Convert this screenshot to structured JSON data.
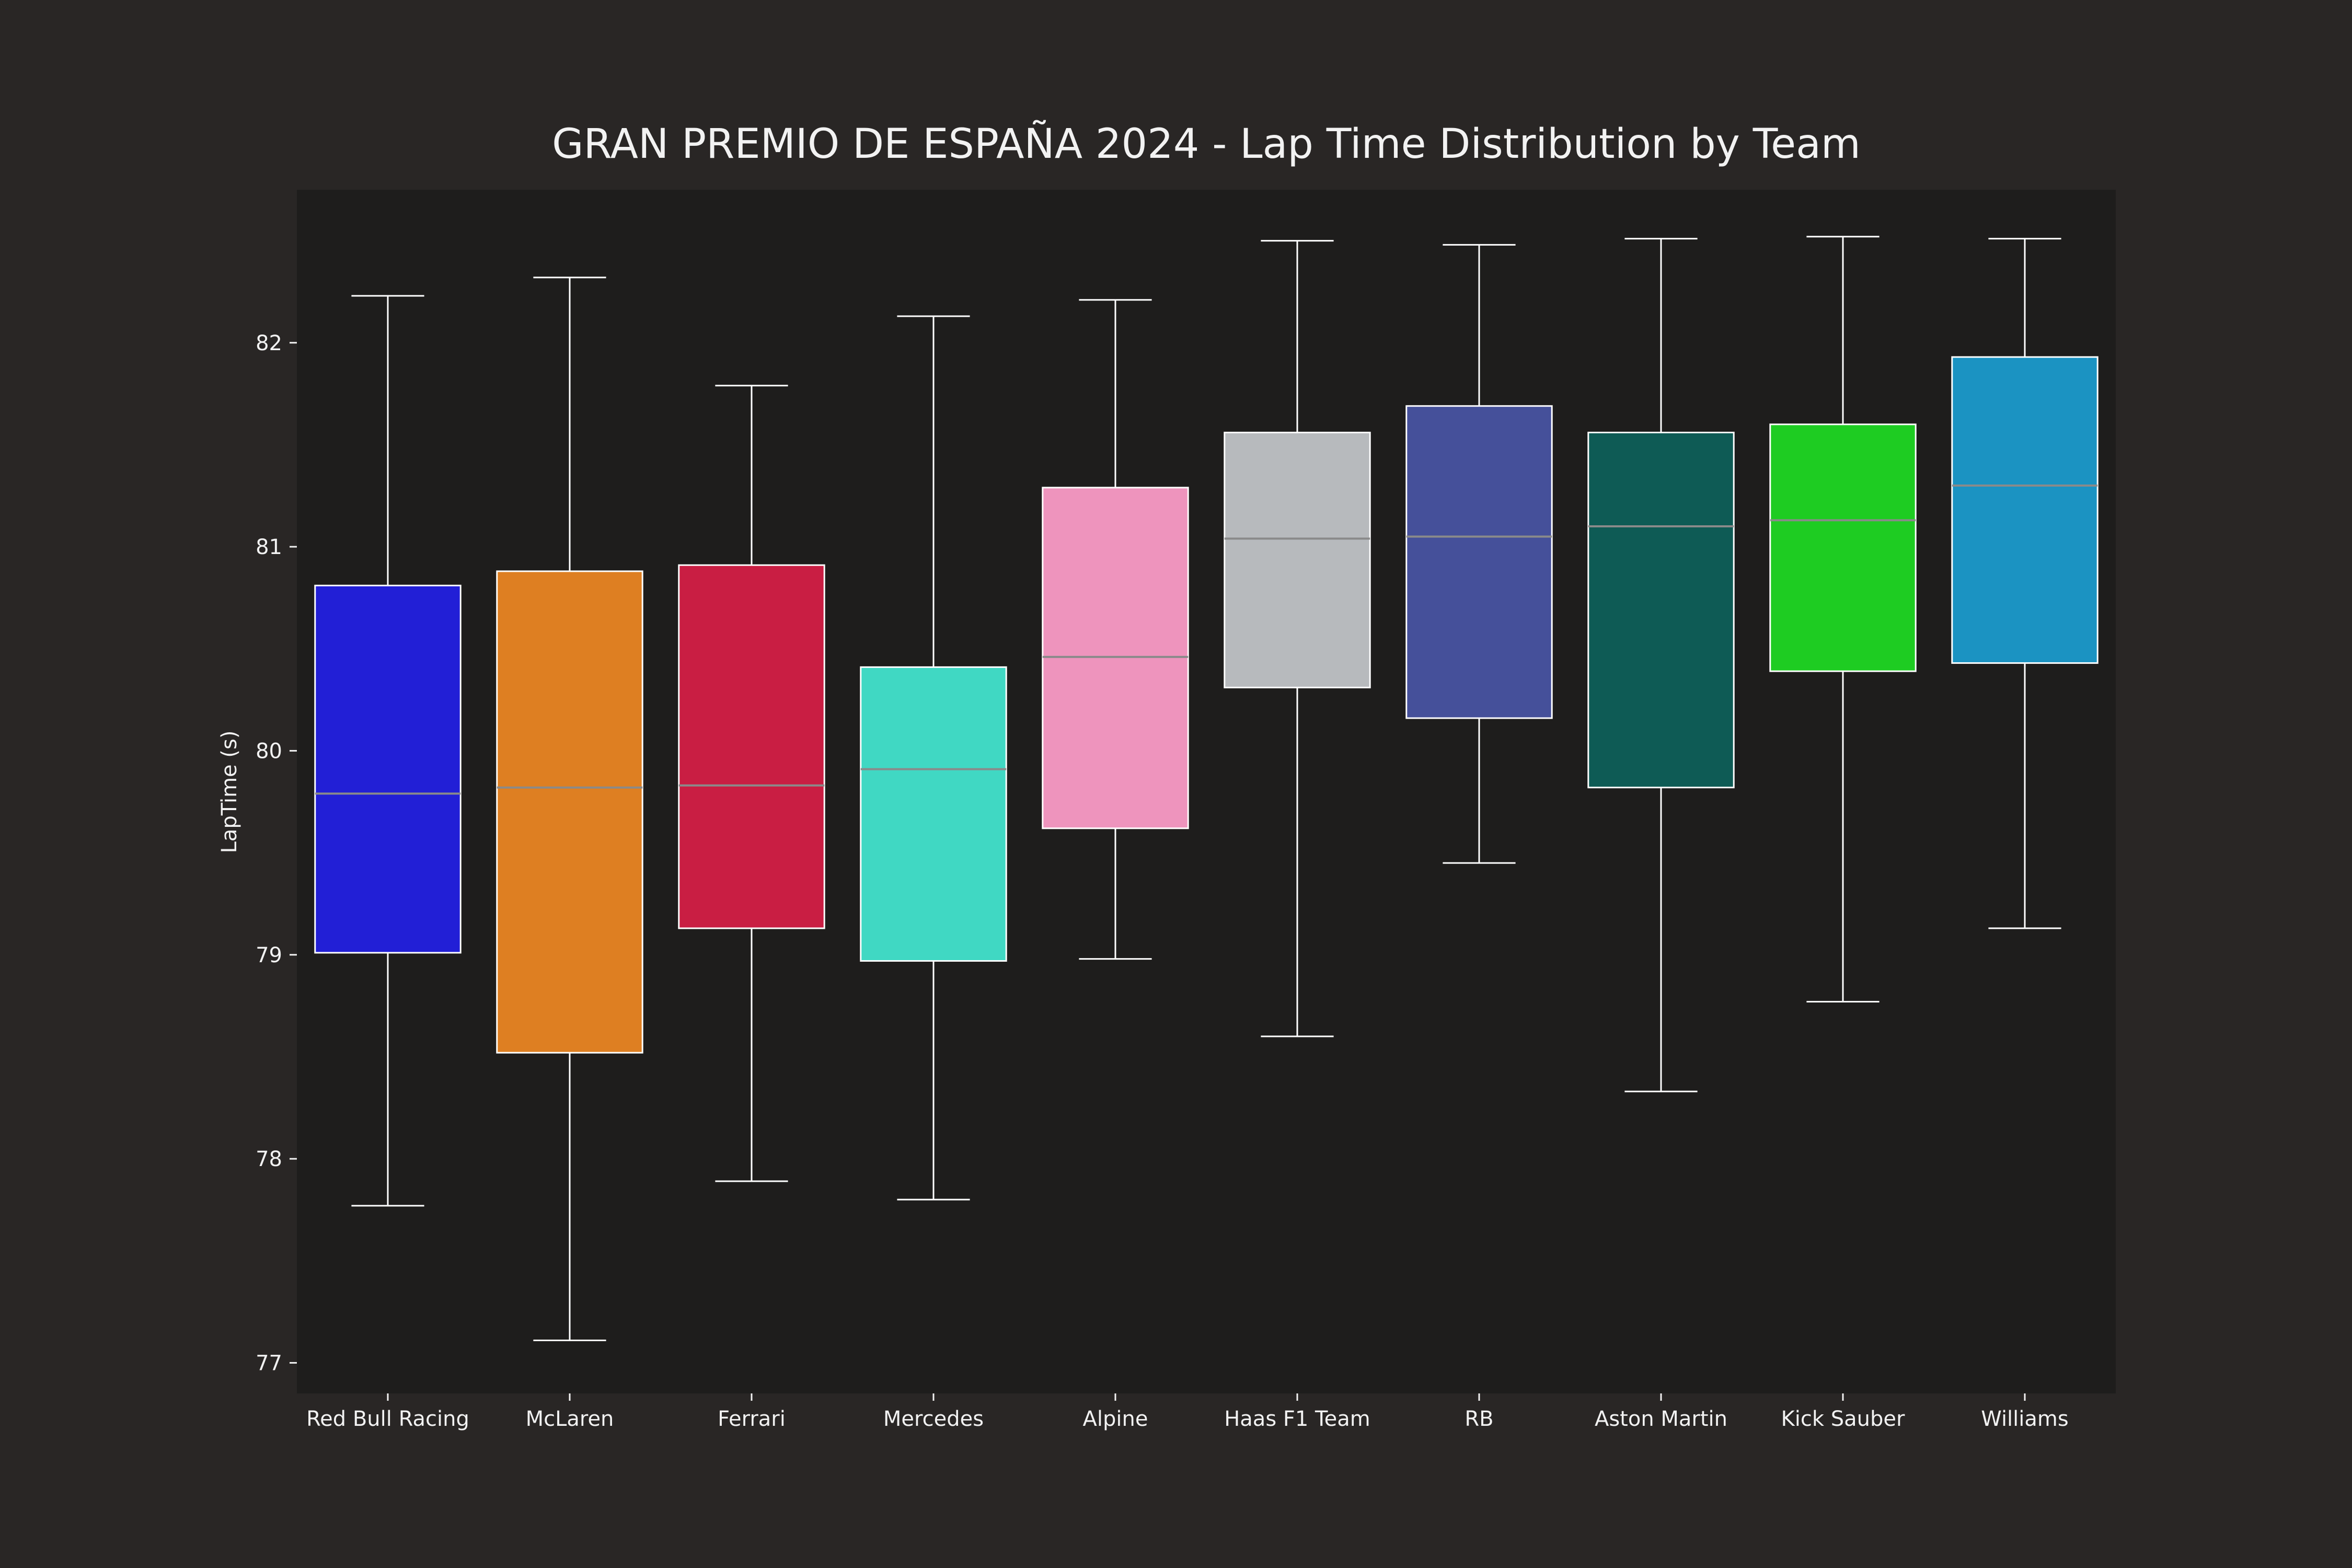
{
  "colors": {
    "figure_bg": "#292625",
    "plot_bg": "#1e1d1c",
    "text": "#f2f2f2",
    "whisker": "#ffffff",
    "median": "#8a8a8a"
  },
  "chart_data": {
    "type": "box",
    "title": "GRAN PREMIO DE ESPAÑA 2024 - Lap Time Distribution by Team",
    "xlabel": "",
    "ylabel": "LapTime (s)",
    "ylim": [
      76.85,
      82.75
    ],
    "yticks": [
      77,
      78,
      79,
      80,
      81,
      82
    ],
    "grid": false,
    "categories": [
      "Red Bull Racing",
      "McLaren",
      "Ferrari",
      "Mercedes",
      "Alpine",
      "Haas F1 Team",
      "RB",
      "Aston Martin",
      "Kick Sauber",
      "Williams"
    ],
    "boxes": [
      {
        "team": "Red Bull Racing",
        "color": "#221fd6",
        "whisker_low": 77.77,
        "q1": 79.01,
        "median": 79.79,
        "q3": 80.81,
        "whisker_high": 82.23
      },
      {
        "team": "McLaren",
        "color": "#de7f22",
        "whisker_low": 77.11,
        "q1": 78.52,
        "median": 79.82,
        "q3": 80.88,
        "whisker_high": 82.32
      },
      {
        "team": "Ferrari",
        "color": "#c91e43",
        "whisker_low": 77.89,
        "q1": 79.13,
        "median": 79.83,
        "q3": 80.91,
        "whisker_high": 81.79
      },
      {
        "team": "Mercedes",
        "color": "#40d8c3",
        "whisker_low": 77.8,
        "q1": 78.97,
        "median": 79.91,
        "q3": 80.41,
        "whisker_high": 82.13
      },
      {
        "team": "Alpine",
        "color": "#ee94bd",
        "whisker_low": 78.98,
        "q1": 79.62,
        "median": 80.46,
        "q3": 81.29,
        "whisker_high": 82.21
      },
      {
        "team": "Haas F1 Team",
        "color": "#b7babd",
        "whisker_low": 78.6,
        "q1": 80.31,
        "median": 81.04,
        "q3": 81.56,
        "whisker_high": 82.5
      },
      {
        "team": "RB",
        "color": "#45509a",
        "whisker_low": 79.45,
        "q1": 80.16,
        "median": 81.05,
        "q3": 81.69,
        "whisker_high": 82.48
      },
      {
        "team": "Aston Martin",
        "color": "#0e5b55",
        "whisker_low": 78.33,
        "q1": 79.82,
        "median": 81.1,
        "q3": 81.56,
        "whisker_high": 82.51
      },
      {
        "team": "Kick Sauber",
        "color": "#1ecc22",
        "whisker_low": 78.77,
        "q1": 80.39,
        "median": 81.13,
        "q3": 81.6,
        "whisker_high": 82.52
      },
      {
        "team": "Williams",
        "color": "#1b93c2",
        "whisker_low": 79.13,
        "q1": 80.43,
        "median": 81.3,
        "q3": 81.93,
        "whisker_high": 82.51
      }
    ]
  }
}
